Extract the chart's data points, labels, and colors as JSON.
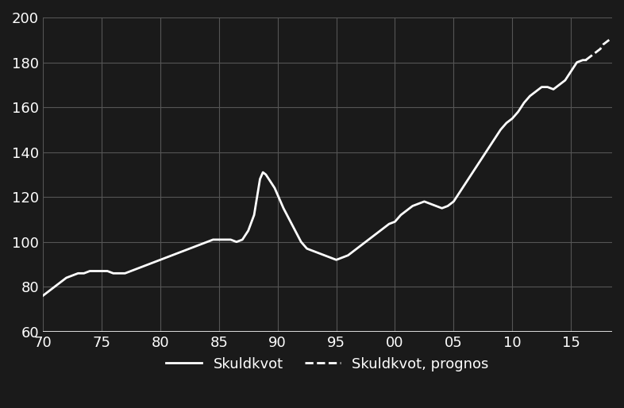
{
  "background_color": "#1a1a1a",
  "plot_bg_color": "#1a1a1a",
  "line_color": "#ffffff",
  "grid_color": "#555555",
  "text_color": "#ffffff",
  "ylim": [
    60,
    200
  ],
  "yticks": [
    60,
    80,
    100,
    120,
    140,
    160,
    180,
    200
  ],
  "xlim": [
    1970,
    2018.5
  ],
  "xticks": [
    1970,
    1975,
    1980,
    1985,
    1990,
    1995,
    2000,
    2005,
    2010,
    2015
  ],
  "xtick_labels": [
    "70",
    "75",
    "80",
    "85",
    "90",
    "95",
    "00",
    "05",
    "10",
    "15"
  ],
  "legend_labels": [
    "Skuldkvot",
    "Skuldkvot, prognos"
  ],
  "solid_x": [
    1970,
    1970.5,
    1971,
    1971.5,
    1972,
    1972.5,
    1973,
    1973.5,
    1974,
    1974.5,
    1975,
    1975.5,
    1976,
    1976.5,
    1977,
    1977.5,
    1978,
    1978.5,
    1979,
    1979.5,
    1980,
    1980.5,
    1981,
    1981.5,
    1982,
    1982.5,
    1983,
    1983.5,
    1984,
    1984.5,
    1985,
    1985.5,
    1986,
    1986.5,
    1987,
    1987.5,
    1988,
    1988.25,
    1988.5,
    1988.75,
    1989,
    1989.25,
    1989.5,
    1989.75,
    1990,
    1990.5,
    1991,
    1991.5,
    1992,
    1992.5,
    1993,
    1993.5,
    1994,
    1994.5,
    1995,
    1995.5,
    1996,
    1996.5,
    1997,
    1997.5,
    1998,
    1998.5,
    1999,
    1999.5,
    2000,
    2000.5,
    2001,
    2001.5,
    2002,
    2002.5,
    2003,
    2003.5,
    2004,
    2004.5,
    2005,
    2005.5,
    2006,
    2006.5,
    2007,
    2007.5,
    2008,
    2008.5,
    2009,
    2009.5,
    2010,
    2010.5,
    2011,
    2011.5,
    2012,
    2012.5,
    2013,
    2013.5,
    2014,
    2014.5,
    2015,
    2015.5,
    2016,
    2016.25
  ],
  "solid_y": [
    76,
    78,
    80,
    82,
    84,
    85,
    86,
    86,
    87,
    87,
    87,
    87,
    86,
    86,
    86,
    87,
    88,
    89,
    90,
    91,
    92,
    93,
    94,
    95,
    96,
    97,
    98,
    99,
    100,
    101,
    101,
    101,
    101,
    100,
    101,
    105,
    112,
    120,
    128,
    131,
    130,
    128,
    126,
    124,
    121,
    115,
    110,
    105,
    100,
    97,
    96,
    95,
    94,
    93,
    92,
    93,
    94,
    96,
    98,
    100,
    102,
    104,
    106,
    108,
    109,
    112,
    114,
    116,
    117,
    118,
    117,
    116,
    115,
    116,
    118,
    122,
    126,
    130,
    134,
    138,
    142,
    146,
    150,
    153,
    155,
    158,
    162,
    165,
    167,
    169,
    169,
    168,
    170,
    172,
    176,
    180,
    181,
    181
  ],
  "dashed_x": [
    2016.25,
    2016.5,
    2016.75,
    2017,
    2017.25,
    2017.5,
    2017.75,
    2018,
    2018.25
  ],
  "dashed_y": [
    181,
    182,
    183,
    184,
    185,
    186,
    188,
    189,
    190
  ]
}
